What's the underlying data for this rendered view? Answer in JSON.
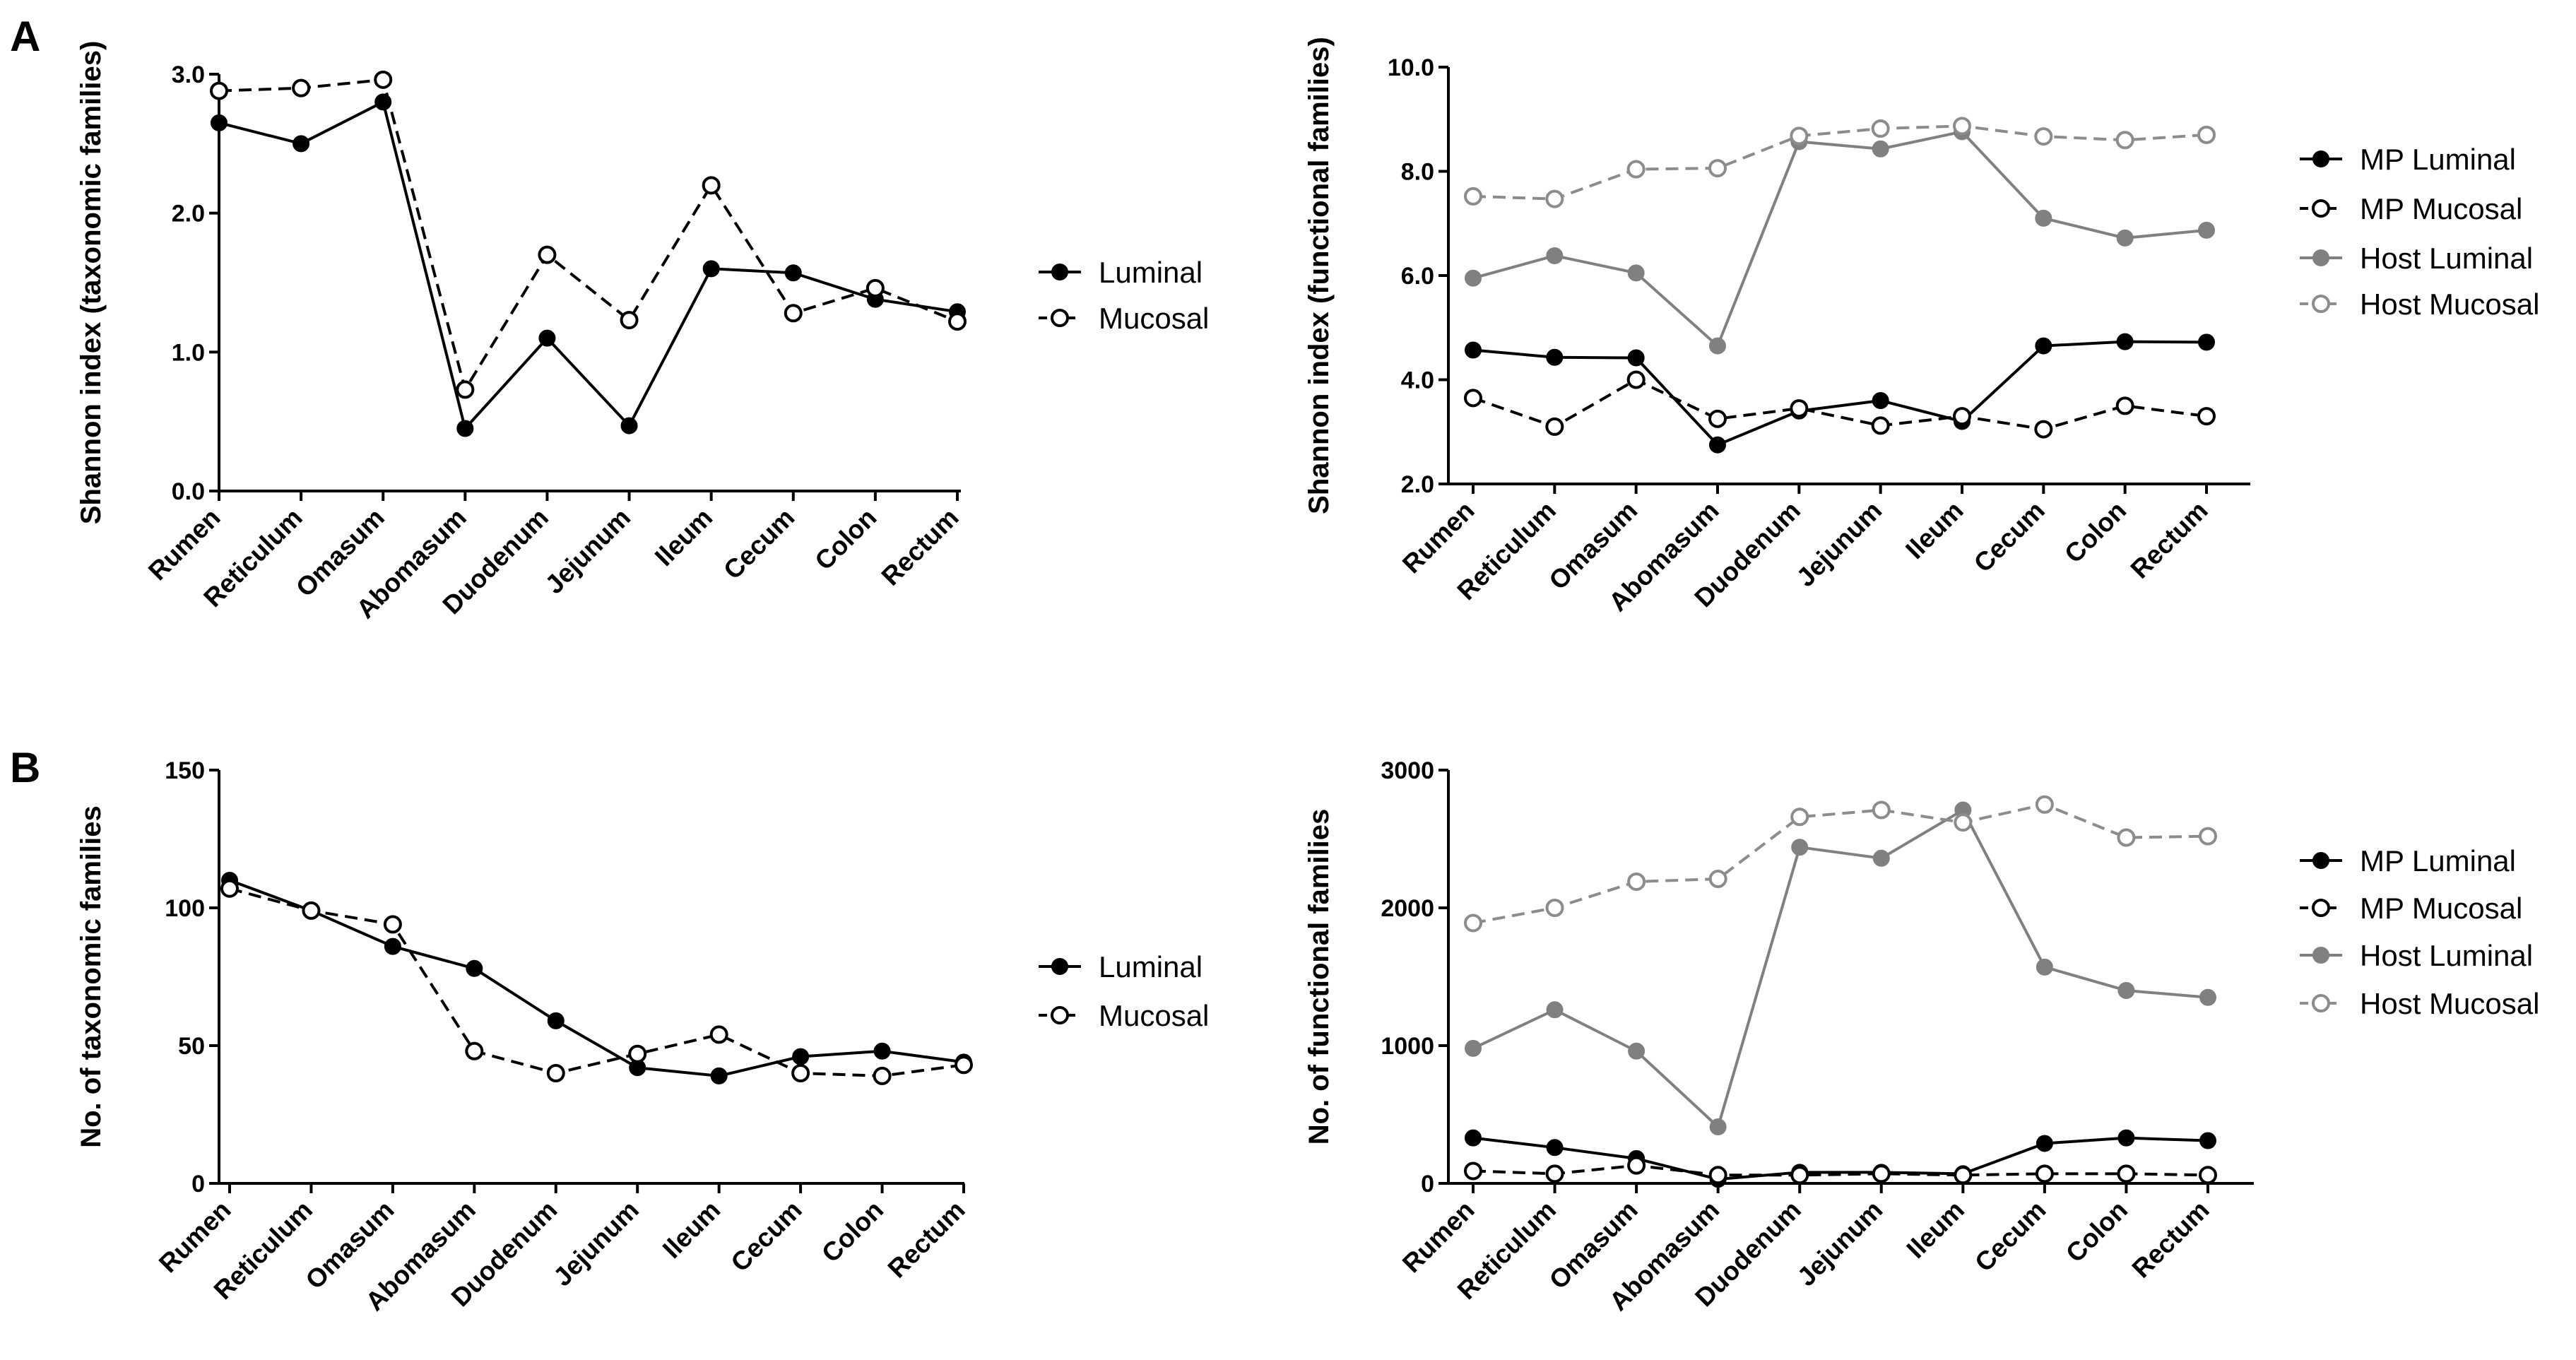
{
  "panel_letters": [
    "A",
    "B"
  ],
  "colors": {
    "black": "#000000",
    "gray": "#808080",
    "gray_hollow": "#8c8c8c"
  },
  "chart_data": [
    {
      "id": "A-left",
      "type": "line",
      "panel": "A",
      "categories": [
        "Rumen",
        "Reticulum",
        "Omasum",
        "Abomasum",
        "Duodenum",
        "Jejunum",
        "Ileum",
        "Cecum",
        "Colon",
        "Rectum"
      ],
      "ylabel": "Shannon index (taxonomic families)",
      "xlabel": "",
      "ylim": [
        0,
        3
      ],
      "yticks": [
        0,
        1,
        2,
        3
      ],
      "ytick_labels": [
        "0.0",
        "1.0",
        "2.0",
        "3.0"
      ],
      "legend_position": "right",
      "series": [
        {
          "name": "Luminal",
          "color": "#000000",
          "marker": "filled",
          "dashed": false,
          "values": [
            2.65,
            2.5,
            2.8,
            0.45,
            1.1,
            0.47,
            1.6,
            1.57,
            1.38,
            1.29
          ]
        },
        {
          "name": "Mucosal",
          "color": "#000000",
          "marker": "open",
          "dashed": true,
          "values": [
            2.88,
            2.9,
            2.96,
            0.73,
            1.7,
            1.23,
            2.2,
            1.28,
            1.46,
            1.22
          ]
        }
      ]
    },
    {
      "id": "A-right",
      "type": "line",
      "panel": "A",
      "categories": [
        "Rumen",
        "Reticulum",
        "Omasum",
        "Abomasum",
        "Duodenum",
        "Jejunum",
        "Ileum",
        "Cecum",
        "Colon",
        "Rectum"
      ],
      "ylabel": "Shannon index (functional families)",
      "xlabel": "",
      "ylim": [
        2,
        10
      ],
      "yticks": [
        2,
        4,
        6,
        8,
        10
      ],
      "ytick_labels": [
        "2.0",
        "4.0",
        "6.0",
        "8.0",
        "10.0"
      ],
      "legend_position": "right",
      "series": [
        {
          "name": "MP Luminal",
          "color": "#000000",
          "marker": "filled",
          "dashed": false,
          "values": [
            4.57,
            4.43,
            4.42,
            2.75,
            3.4,
            3.6,
            3.2,
            4.65,
            4.73,
            4.72
          ]
        },
        {
          "name": "MP Mucosal",
          "color": "#000000",
          "marker": "open",
          "dashed": true,
          "values": [
            3.65,
            3.1,
            4.0,
            3.25,
            3.45,
            3.12,
            3.3,
            3.05,
            3.5,
            3.3
          ]
        },
        {
          "name": "Host Luminal",
          "color": "#808080",
          "marker": "filled",
          "dashed": false,
          "values": [
            5.95,
            6.38,
            6.05,
            4.65,
            8.57,
            8.43,
            8.76,
            7.1,
            6.72,
            6.87
          ]
        },
        {
          "name": "Host Mucosal",
          "color": "#8c8c8c",
          "marker": "open",
          "dashed": true,
          "values": [
            7.52,
            7.47,
            8.04,
            8.06,
            8.68,
            8.82,
            8.87,
            8.67,
            8.6,
            8.7
          ]
        }
      ]
    },
    {
      "id": "B-left",
      "type": "line",
      "panel": "B",
      "categories": [
        "Rumen",
        "Reticulum",
        "Omasum",
        "Abomasum",
        "Duodenum",
        "Jejunum",
        "Ileum",
        "Cecum",
        "Colon",
        "Rectum"
      ],
      "ylabel": "No. of taxonomic families",
      "xlabel": "",
      "ylim": [
        0,
        150
      ],
      "yticks": [
        0,
        50,
        100,
        150
      ],
      "ytick_labels": [
        "0",
        "50",
        "100",
        "150"
      ],
      "legend_position": "right",
      "series": [
        {
          "name": "Luminal",
          "color": "#000000",
          "marker": "filled",
          "dashed": false,
          "values": [
            110,
            99,
            86,
            78,
            59,
            42,
            39,
            46,
            48,
            44
          ]
        },
        {
          "name": "Mucosal",
          "color": "#000000",
          "marker": "open",
          "dashed": true,
          "values": [
            107,
            99,
            94,
            48,
            40,
            47,
            54,
            40,
            39,
            43
          ]
        }
      ]
    },
    {
      "id": "B-right",
      "type": "line",
      "panel": "B",
      "categories": [
        "Rumen",
        "Reticulum",
        "Omasum",
        "Abomasum",
        "Duodenum",
        "Jejunum",
        "Ileum",
        "Cecum",
        "Colon",
        "Rectum"
      ],
      "ylabel": "No. of functional families",
      "xlabel": "",
      "ylim": [
        0,
        3000
      ],
      "yticks": [
        0,
        1000,
        2000,
        3000
      ],
      "ytick_labels": [
        "0",
        "1000",
        "2000",
        "3000"
      ],
      "legend_position": "right",
      "series": [
        {
          "name": "MP Luminal",
          "color": "#000000",
          "marker": "filled",
          "dashed": false,
          "values": [
            330,
            260,
            180,
            30,
            80,
            80,
            70,
            290,
            330,
            310
          ]
        },
        {
          "name": "MP Mucosal",
          "color": "#000000",
          "marker": "open",
          "dashed": true,
          "values": [
            90,
            70,
            130,
            60,
            60,
            70,
            60,
            70,
            70,
            60
          ]
        },
        {
          "name": "Host Luminal",
          "color": "#808080",
          "marker": "filled",
          "dashed": false,
          "values": [
            980,
            1260,
            960,
            410,
            2440,
            2360,
            2710,
            1570,
            1400,
            1350
          ]
        },
        {
          "name": "Host Mucosal",
          "color": "#8c8c8c",
          "marker": "open",
          "dashed": true,
          "values": [
            1890,
            2000,
            2190,
            2210,
            2660,
            2710,
            2620,
            2750,
            2510,
            2520
          ]
        }
      ]
    }
  ]
}
